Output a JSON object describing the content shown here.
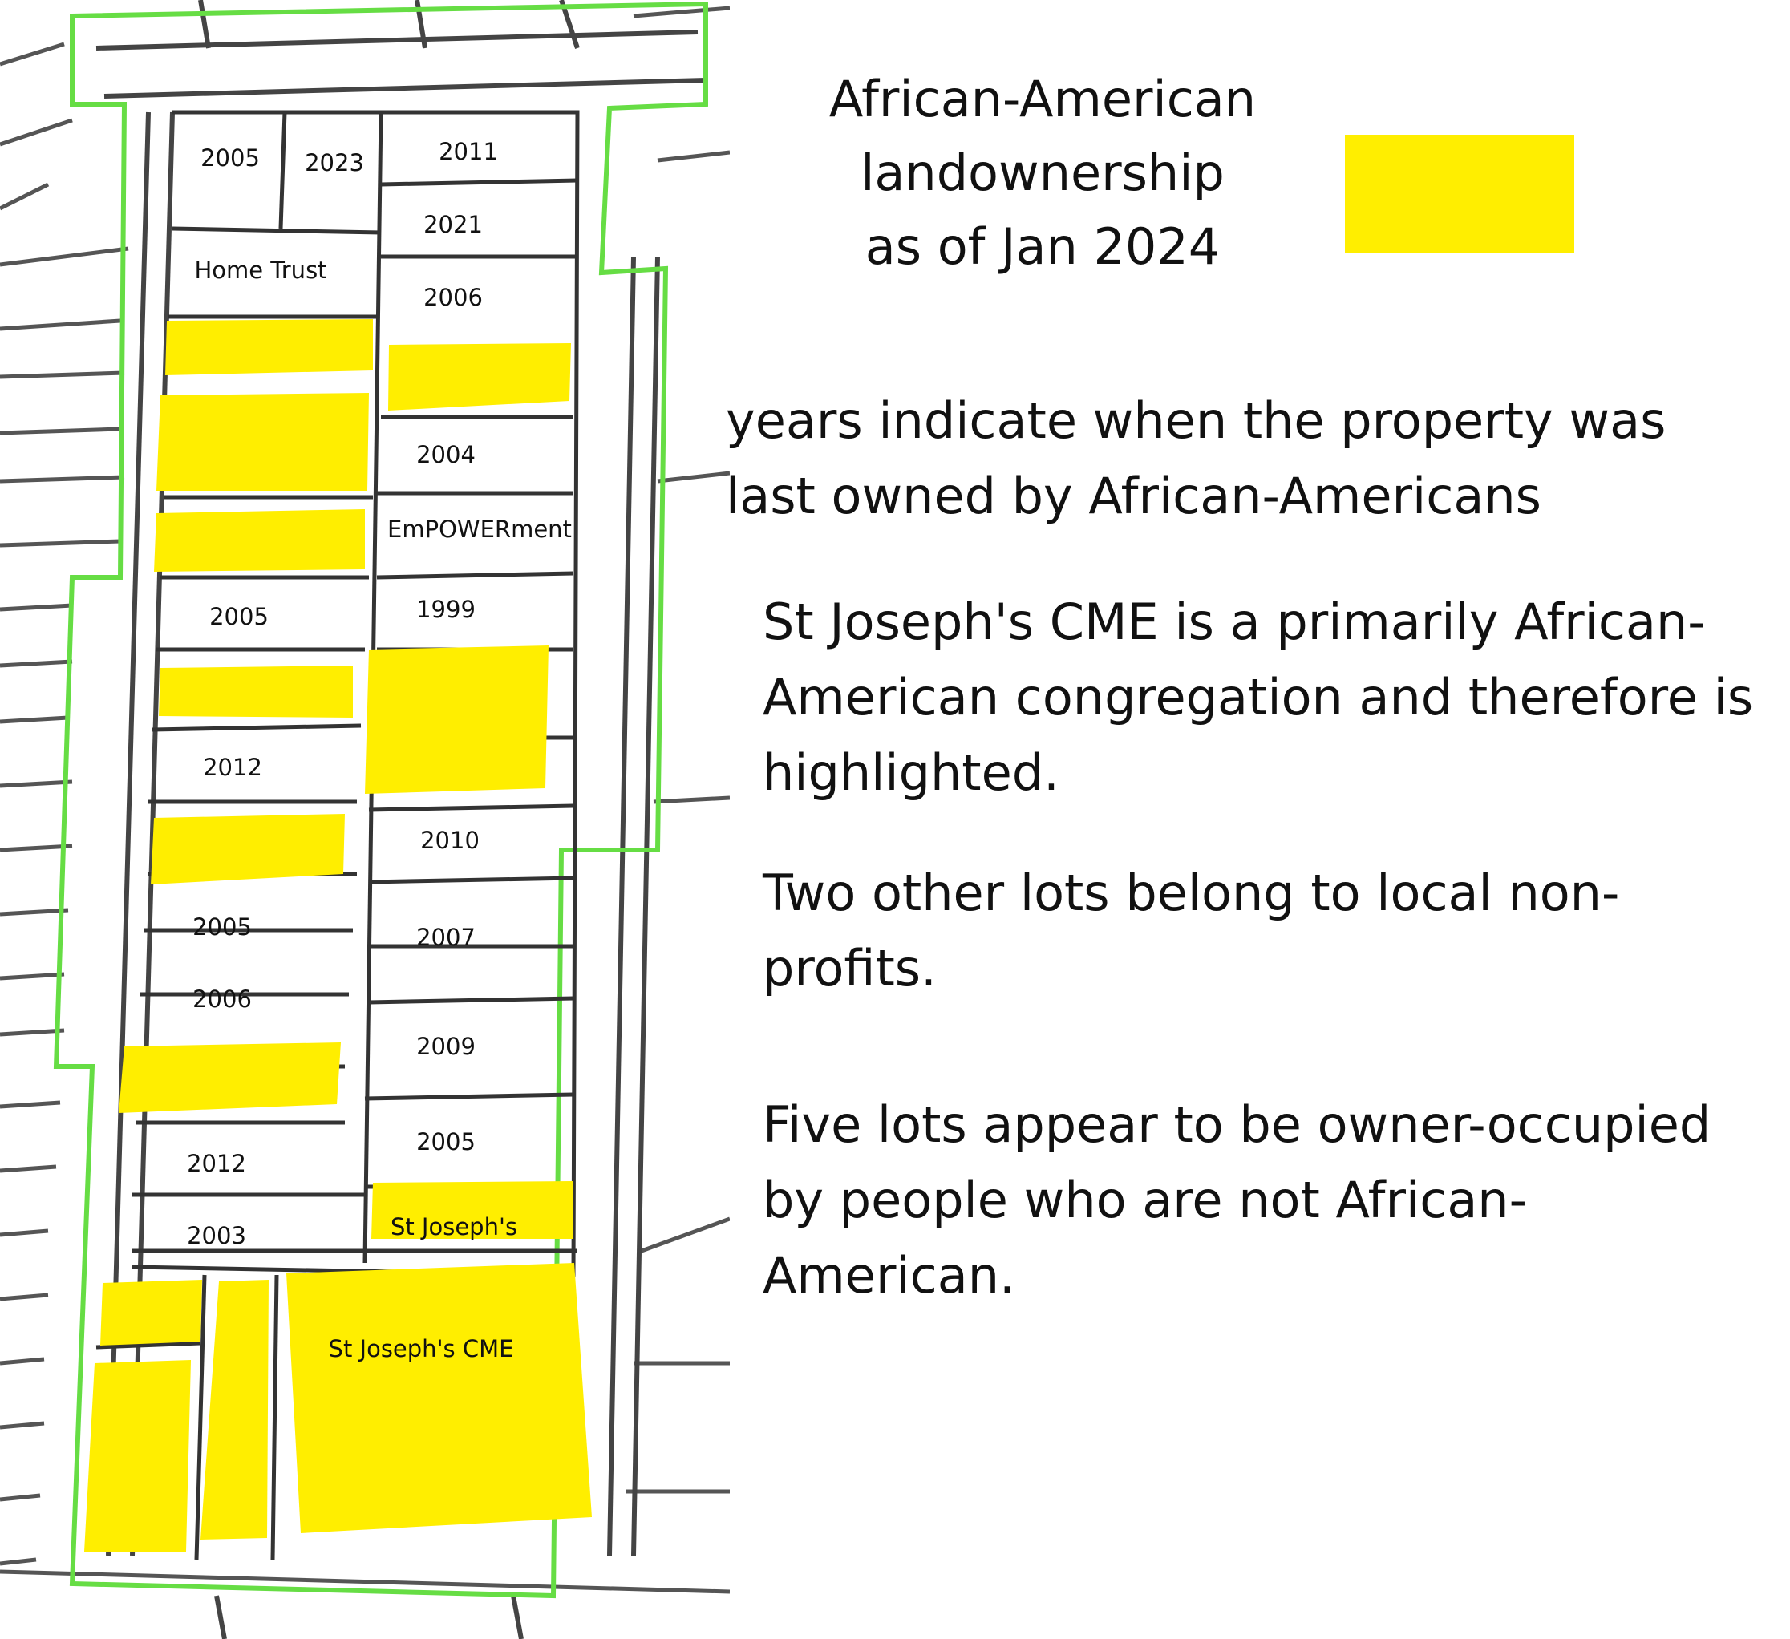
{
  "legend": {
    "title_lines": [
      "African-American",
      "landownership",
      "as of Jan 2024"
    ],
    "swatch_color": "#ffee00",
    "swatch_meaning": "African-American landownership"
  },
  "notes": {
    "years": "years indicate when the property was last owned by African-Americans",
    "church": "St Joseph's CME is a primarily African-American congregation and therefore is highlighted.",
    "nonprofits": "Two other lots belong to local non-profits.",
    "owner_occupied": "Five lots appear to be owner-occupied by people who are not African-American."
  },
  "colors": {
    "highlight": "#ffee00",
    "district_boundary": "#66dd44",
    "parcel_lines": "#444444"
  },
  "map": {
    "lots": {
      "l2005a": "2005",
      "l2023": "2023",
      "l2011": "2011",
      "l2021": "2021",
      "lhome": "Home Trust",
      "l2006a": "2006",
      "l2004": "2004",
      "lempower": "EmPOWERment",
      "l2005b": "2005",
      "l1999": "1999",
      "l2012a": "2012",
      "l2010": "2010",
      "l2005c": "2005",
      "l2007": "2007",
      "l2006b": "2006",
      "l2009": "2009",
      "l2005d": "2005",
      "l2012b": "2012",
      "lstjo": "St Joseph's",
      "l2003": "2003",
      "lcme": "St Joseph's CME"
    }
  }
}
